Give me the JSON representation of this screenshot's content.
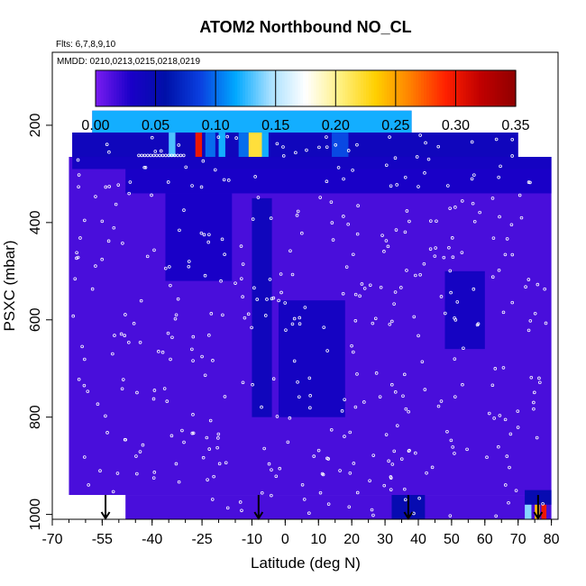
{
  "chart_data": {
    "type": "heatmap",
    "title": "ATOM2 Northbound NO_CL",
    "flights_note": "Flts: 6,7,8,9,10",
    "dates_note": "MMDD: 0210,0213,0215,0218,0219",
    "xlabel": "Latitude (deg N)",
    "ylabel": "PSXC (mbar)",
    "xlim": [
      -70,
      82
    ],
    "ylim": [
      1010,
      50
    ],
    "x_ticks": [
      -70,
      -55,
      -40,
      -25,
      -10,
      0,
      10,
      20,
      30,
      40,
      50,
      60,
      70,
      80
    ],
    "x_tick_labels": [
      "-70",
      "-55",
      "-40",
      "-25",
      "-10",
      "0",
      "10",
      "20",
      "30",
      "40",
      "50",
      "60",
      "70",
      "80"
    ],
    "y_ticks": [
      200,
      400,
      600,
      800,
      1000
    ],
    "y_tick_labels": [
      "200",
      "400",
      "600",
      "800",
      "1000"
    ],
    "colorbar": {
      "range": [
        0,
        0.35
      ],
      "ticks": [
        0,
        0.05,
        0.1,
        0.15,
        0.2,
        0.25,
        0.3,
        0.35
      ],
      "tick_labels": [
        "0.00",
        "0.05",
        "0.10",
        "0.15",
        "0.20",
        "0.25",
        "0.30",
        "0.35"
      ],
      "colors": [
        "#7a1cf0",
        "#1a00c8",
        "#0010a8",
        "#0a40e0",
        "#00a8ff",
        "#a8e0ff",
        "#ffffff",
        "#fff080",
        "#ffd000",
        "#ff8000",
        "#ff2000",
        "#c00000",
        "#900000"
      ]
    },
    "background_value": 0.015,
    "regions": [
      {
        "lat": [
          -58,
          38
        ],
        "p": [
          170,
          215
        ],
        "value": 0.12
      },
      {
        "lat": [
          -64,
          70
        ],
        "p": [
          215,
          265
        ],
        "value": 0.04
      },
      {
        "lat": [
          -64,
          80
        ],
        "p": [
          265,
          290
        ],
        "value": 0.035
      },
      {
        "lat": [
          -48,
          80
        ],
        "p": [
          290,
          340
        ],
        "value": 0.03
      },
      {
        "lat": [
          -36,
          -16
        ],
        "p": [
          340,
          520
        ],
        "value": 0.03
      },
      {
        "lat": [
          -10,
          -4
        ],
        "p": [
          350,
          800
        ],
        "value": 0.04
      },
      {
        "lat": [
          -2,
          18
        ],
        "p": [
          560,
          800
        ],
        "value": 0.035
      },
      {
        "lat": [
          48,
          60
        ],
        "p": [
          500,
          660
        ],
        "value": 0.035
      },
      {
        "lat": [
          32,
          42
        ],
        "p": [
          960,
          1010
        ],
        "value": 0.05
      },
      {
        "lat": [
          72,
          80
        ],
        "p": [
          950,
          980
        ],
        "value": 0.05
      }
    ],
    "hotspots": [
      {
        "lat": [
          -35,
          -33
        ],
        "p": [
          215,
          265
        ],
        "value": 0.13
      },
      {
        "lat": [
          -27,
          -25
        ],
        "p": [
          215,
          265
        ],
        "value": 0.3
      },
      {
        "lat": [
          -24,
          -21
        ],
        "p": [
          215,
          265
        ],
        "value": 0.1
      },
      {
        "lat": [
          -20,
          -18
        ],
        "p": [
          215,
          265
        ],
        "value": 0.12
      },
      {
        "lat": [
          -14,
          -11
        ],
        "p": [
          215,
          265
        ],
        "value": 0.1
      },
      {
        "lat": [
          -11,
          -7
        ],
        "p": [
          215,
          265
        ],
        "value": 0.22
      },
      {
        "lat": [
          -7,
          -5
        ],
        "p": [
          215,
          265
        ],
        "value": 0.12
      },
      {
        "lat": [
          14,
          19
        ],
        "p": [
          215,
          265
        ],
        "value": 0.09
      },
      {
        "lat": [
          72,
          74
        ],
        "p": [
          980,
          1010
        ],
        "value": 0.14
      },
      {
        "lat": [
          75,
          76.5
        ],
        "p": [
          980,
          1010
        ],
        "value": 0.24
      },
      {
        "lat": [
          77,
          78.5
        ],
        "p": [
          980,
          1010
        ],
        "value": 0.3
      }
    ],
    "arrows": [
      {
        "lat": -54
      },
      {
        "lat": -8
      },
      {
        "lat": 37
      },
      {
        "lat": 76
      }
    ]
  }
}
